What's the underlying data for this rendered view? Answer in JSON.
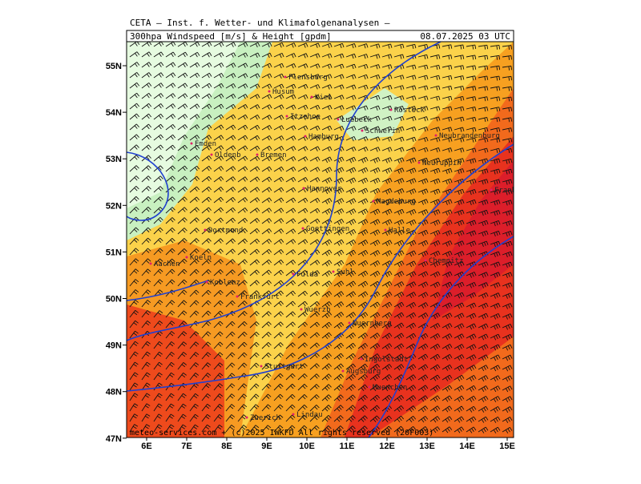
{
  "header": {
    "institute": "CETA – Inst. f. Wetter- und Klimafolgenanalysen –",
    "title": "300hpa Windspeed [m/s] & Height [gpdm]",
    "datetime": "08.07.2025 03 UTC"
  },
  "latitude_labels": [
    "55N",
    "54N",
    "53N",
    "52N",
    "51N",
    "50N",
    "49N",
    "48N",
    "47N"
  ],
  "longitude_labels": [
    "6E",
    "7E",
    "8E",
    "9E",
    "10E",
    "11E",
    "12E",
    "13E",
    "14E",
    "15E"
  ],
  "cities": [
    "Flensburg",
    "Kiel",
    "Husum",
    "Rostock",
    "Itzehoe",
    "Luebeck",
    "Schwerin",
    "Neubrandenburg",
    "Emden",
    "Hamburg",
    "Oldenb",
    "Bremen",
    "Neuruppin",
    "Hannover",
    "Frankfurt/O.",
    "Magdeburg",
    "Goettingen",
    "Halle",
    "Dortmund",
    "Aachen",
    "Koeln",
    "Chemnitz",
    "Fulda",
    "Suhl",
    "Koblenz",
    "Frankfurt",
    "Wuerzb",
    "Nuernberg",
    "Ingolstadt",
    "Augsburg",
    "Muenchen",
    "Lindau",
    "Zuerich",
    "Stuttgart"
  ],
  "footer": "meteo-services.com + (c)2025 IWKFD All rights reserved (20F003)"
}
